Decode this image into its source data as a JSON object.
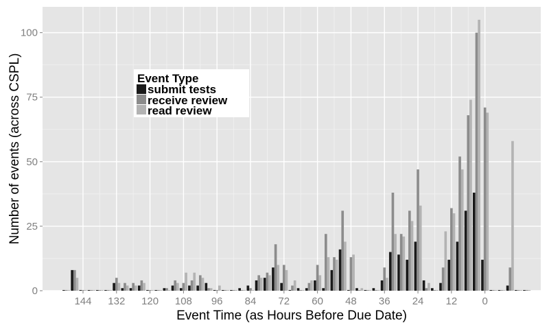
{
  "chart_data": {
    "type": "bar",
    "xlabel": "Event Time (as Hours Before Due Date)",
    "ylabel": "Number of events (across CSPL)",
    "x_ticks": [
      144,
      132,
      120,
      108,
      96,
      84,
      72,
      60,
      48,
      36,
      24,
      12,
      0
    ],
    "y_ticks": [
      0,
      25,
      50,
      75,
      100
    ],
    "ylim": [
      0,
      110
    ],
    "xlim": [
      158.5,
      -20
    ],
    "grid": true,
    "legend": {
      "title": "Event Type",
      "placement": "top-left"
    },
    "colors": {
      "panel": "#e5e5e5",
      "grid": "#ffffff",
      "submit_tests": "#1a1a1a",
      "receive_review": "#8c8c8c",
      "read_review": "#b3b3b3"
    },
    "x": [
      150,
      147,
      144,
      141,
      138,
      135,
      132,
      129,
      126,
      123,
      120,
      117,
      114,
      111,
      108,
      105,
      102,
      99,
      96,
      93,
      90,
      87,
      84,
      81,
      78,
      75,
      72,
      69,
      66,
      63,
      60,
      57,
      54,
      51,
      48,
      45,
      42,
      39,
      36,
      33,
      30,
      27,
      24,
      21,
      18,
      15,
      12,
      9,
      6,
      3,
      0,
      -3,
      -6,
      -9,
      -12,
      -15
    ],
    "series": [
      {
        "name": "submit tests",
        "values": [
          0,
          8,
          0,
          0,
          0,
          0,
          3,
          1,
          1,
          2,
          0,
          0,
          1,
          2,
          1,
          2,
          2,
          3,
          0,
          0,
          0,
          1,
          2,
          4,
          5,
          9,
          3,
          0,
          1,
          1,
          4,
          1,
          8,
          16,
          0,
          1,
          0,
          1,
          4,
          15,
          14,
          12,
          19,
          4,
          1,
          3,
          12,
          19,
          31,
          38,
          12,
          0,
          0,
          2,
          0,
          0
        ]
      },
      {
        "name": "receive review",
        "values": [
          0,
          8,
          0,
          0,
          0,
          0,
          5,
          3,
          3,
          4,
          0,
          0,
          1,
          4,
          3,
          4,
          6,
          1,
          0,
          0,
          0,
          0,
          1,
          6,
          7,
          18,
          10,
          2,
          0,
          3,
          10,
          22,
          13,
          31,
          13,
          0,
          0,
          0,
          9,
          38,
          22,
          31,
          47,
          1,
          0,
          9,
          32,
          52,
          68,
          100,
          71,
          0,
          0,
          9,
          0,
          0
        ]
      },
      {
        "name": "read review",
        "values": [
          0,
          5,
          0,
          0,
          0,
          0,
          3,
          2,
          2,
          3,
          0,
          0,
          0,
          3,
          7,
          7,
          5,
          1,
          2,
          0,
          0,
          0,
          0,
          5,
          6,
          10,
          8,
          4,
          0,
          4,
          6,
          13,
          12,
          19,
          14,
          1,
          0,
          0,
          5,
          22,
          21,
          27,
          33,
          3,
          0,
          23,
          30,
          47,
          74,
          105,
          69,
          0,
          0,
          58,
          0,
          0
        ]
      }
    ]
  }
}
